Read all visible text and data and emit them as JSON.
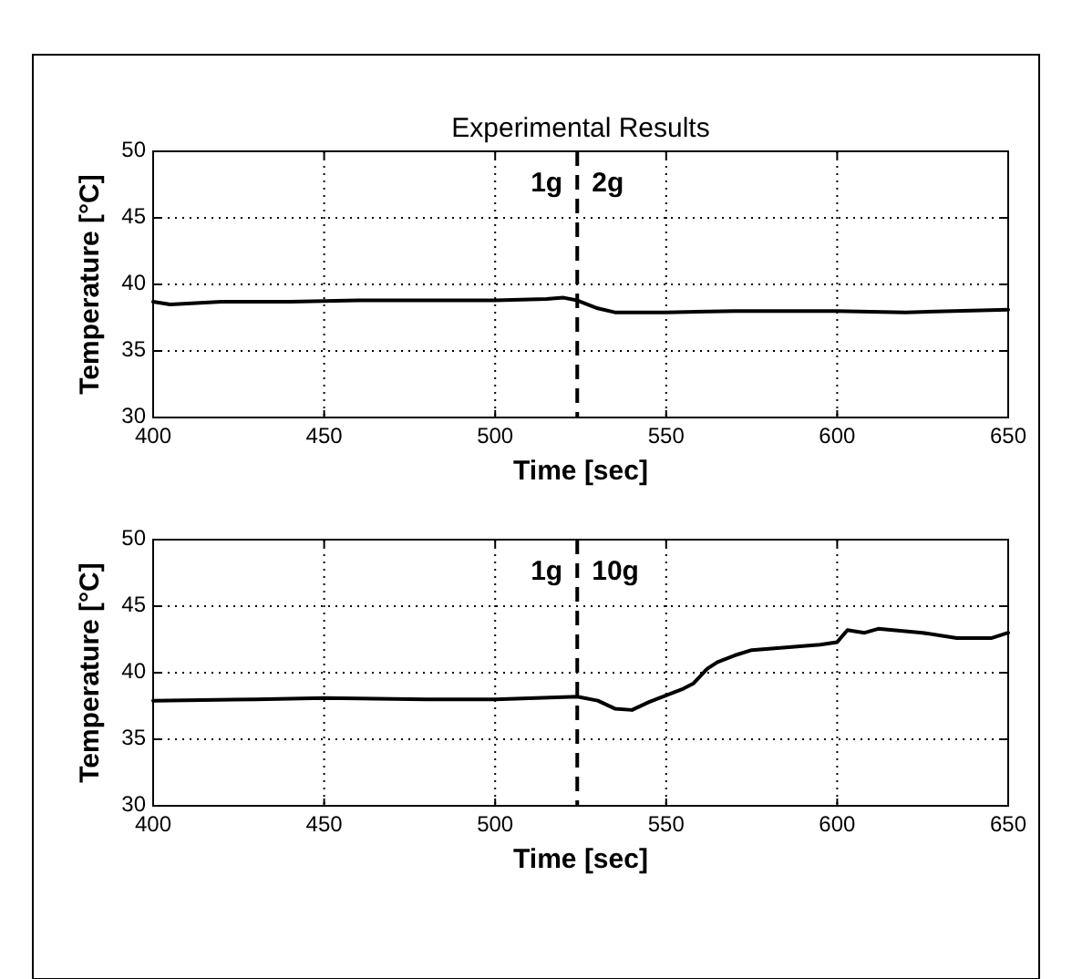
{
  "chart_data": [
    {
      "type": "line",
      "title": "Experimental Results",
      "xlabel": "Time [sec]",
      "ylabel": "Temperature [°C]",
      "x": [
        400,
        405,
        420,
        440,
        460,
        480,
        500,
        515,
        520,
        524,
        530,
        535,
        550,
        570,
        600,
        620,
        650
      ],
      "series": [
        {
          "color": "#000000",
          "values": [
            38.7,
            38.5,
            38.7,
            38.7,
            38.8,
            38.8,
            38.8,
            38.9,
            39.0,
            38.8,
            38.2,
            37.9,
            37.9,
            38.0,
            38.0,
            37.9,
            38.1
          ]
        }
      ],
      "xlim": [
        400,
        650
      ],
      "xticks": [
        400,
        450,
        500,
        550,
        600,
        650
      ],
      "ylim": [
        30,
        50
      ],
      "yticks": [
        30,
        35,
        40,
        45,
        50
      ],
      "grid": true,
      "line_style": "solid",
      "marker": "none",
      "ref_lines": [
        {
          "axis": "x",
          "value": 524,
          "color": "#000000",
          "line_style": "dashed"
        }
      ],
      "annotations": [
        "1g",
        "2g"
      ]
    },
    {
      "type": "line",
      "xlabel": "Time [sec]",
      "ylabel": "Temperature [°C]",
      "x": [
        400,
        430,
        450,
        480,
        500,
        524,
        530,
        535,
        540,
        545,
        550,
        555,
        558,
        562,
        565,
        570,
        575,
        585,
        595,
        600,
        603,
        608,
        612,
        625,
        635,
        645,
        650
      ],
      "series": [
        {
          "color": "#000000",
          "values": [
            37.9,
            38.0,
            38.1,
            38.0,
            38.0,
            38.2,
            37.9,
            37.3,
            37.2,
            37.8,
            38.3,
            38.8,
            39.2,
            40.3,
            40.8,
            41.3,
            41.7,
            41.9,
            42.1,
            42.3,
            43.2,
            43.0,
            43.3,
            43.0,
            42.6,
            42.6,
            43.0
          ]
        }
      ],
      "xlim": [
        400,
        650
      ],
      "xticks": [
        400,
        450,
        500,
        550,
        600,
        650
      ],
      "ylim": [
        30,
        50
      ],
      "yticks": [
        30,
        35,
        40,
        45,
        50
      ],
      "grid": true,
      "line_style": "solid",
      "marker": "none",
      "ref_lines": [
        {
          "axis": "x",
          "value": 524,
          "color": "#000000",
          "line_style": "dashed"
        }
      ],
      "annotations": [
        "1g",
        "10g"
      ]
    }
  ]
}
